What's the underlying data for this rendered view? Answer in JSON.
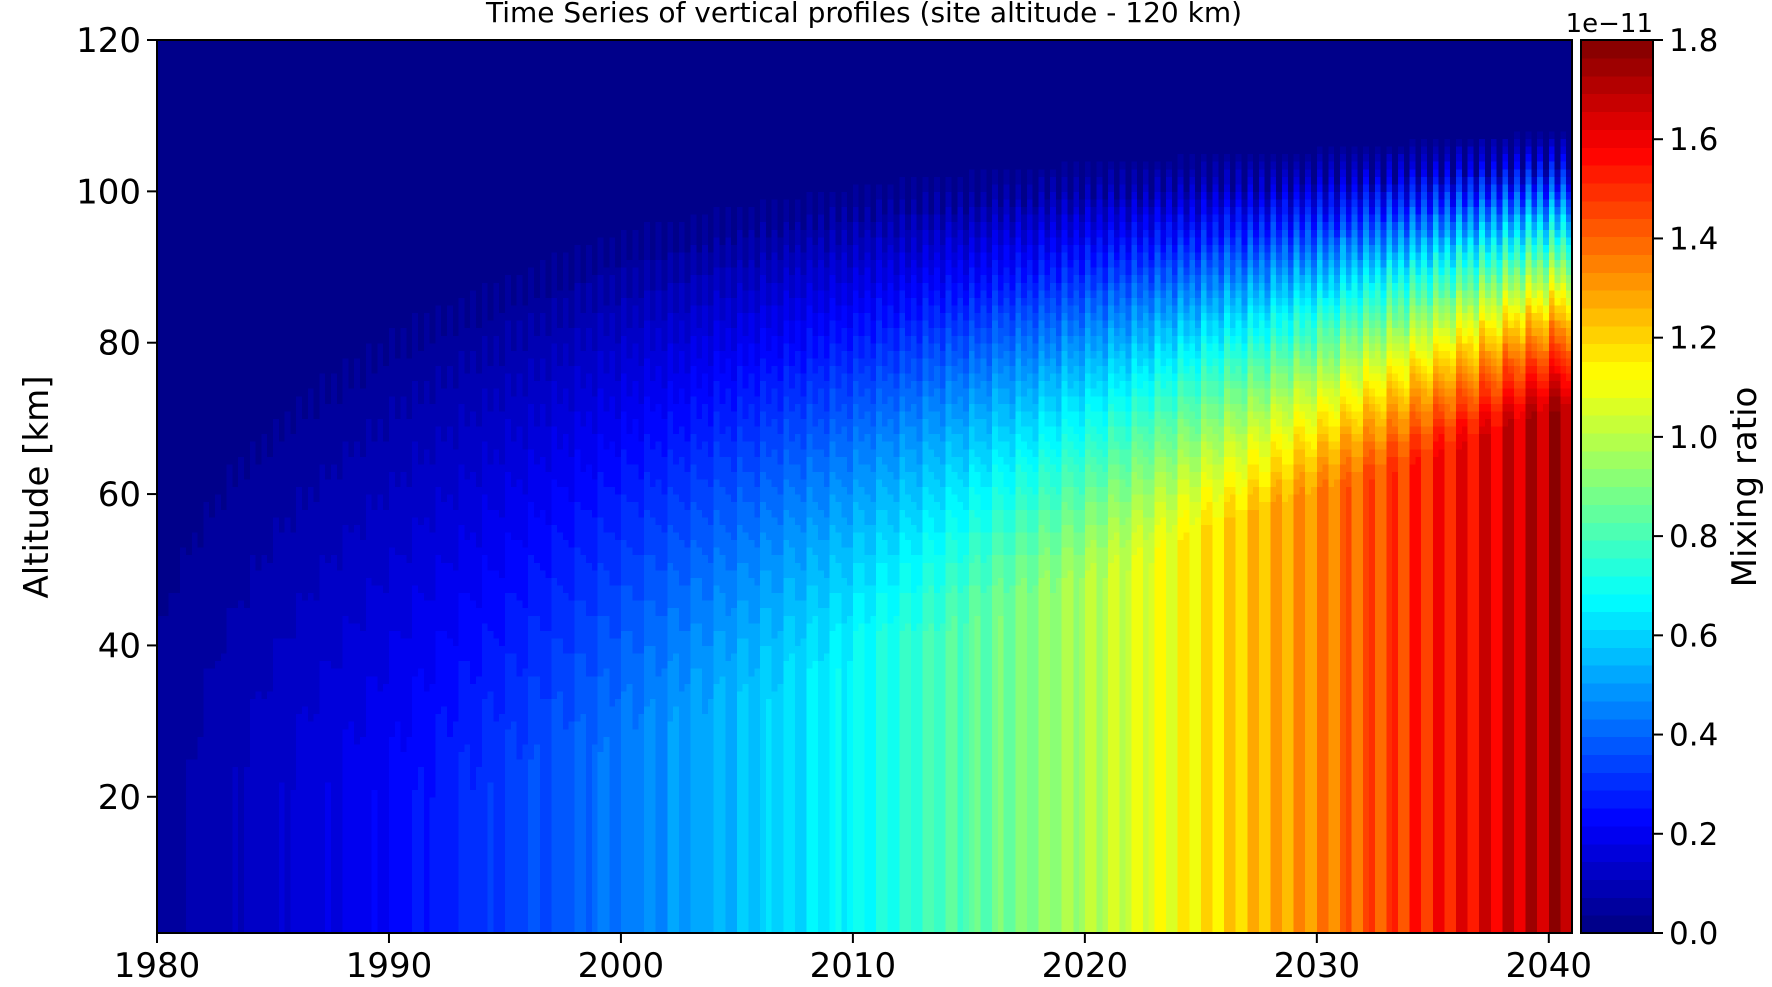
{
  "chart_data": {
    "type": "heatmap",
    "title": "Time Series of vertical profiles (site altitude - 120 km)",
    "xlabel": "",
    "ylabel": "Altitude [km]",
    "xlim": [
      1980,
      2041
    ],
    "ylim": [
      2,
      120
    ],
    "x_ticks": [
      1980,
      1990,
      2000,
      2010,
      2020,
      2030,
      2040
    ],
    "y_ticks": [
      20,
      40,
      60,
      80,
      100,
      120
    ],
    "colorbar": {
      "label": "Mixing ratio",
      "multiplier_label": "1e−11",
      "range": [
        0.0,
        1.8
      ],
      "ticks": [
        "0.0",
        "0.2",
        "0.4",
        "0.6",
        "0.8",
        "1.0",
        "1.2",
        "1.4",
        "1.6",
        "1.8"
      ],
      "colormap": "jet",
      "levels": 50
    },
    "surface_mixing_ratio": {
      "x": [
        1980,
        1990,
        2000,
        2010,
        2020,
        2030,
        2040
      ],
      "values": [
        0.05,
        0.22,
        0.44,
        0.68,
        0.98,
        1.34,
        1.72
      ]
    },
    "upper_boundary_altitude": {
      "x": [
        1980,
        1990,
        2000,
        2010,
        2020,
        2030,
        2040
      ],
      "values": [
        73,
        88,
        97,
        101,
        103,
        104,
        106
      ]
    },
    "grid": false,
    "legend": "none"
  }
}
